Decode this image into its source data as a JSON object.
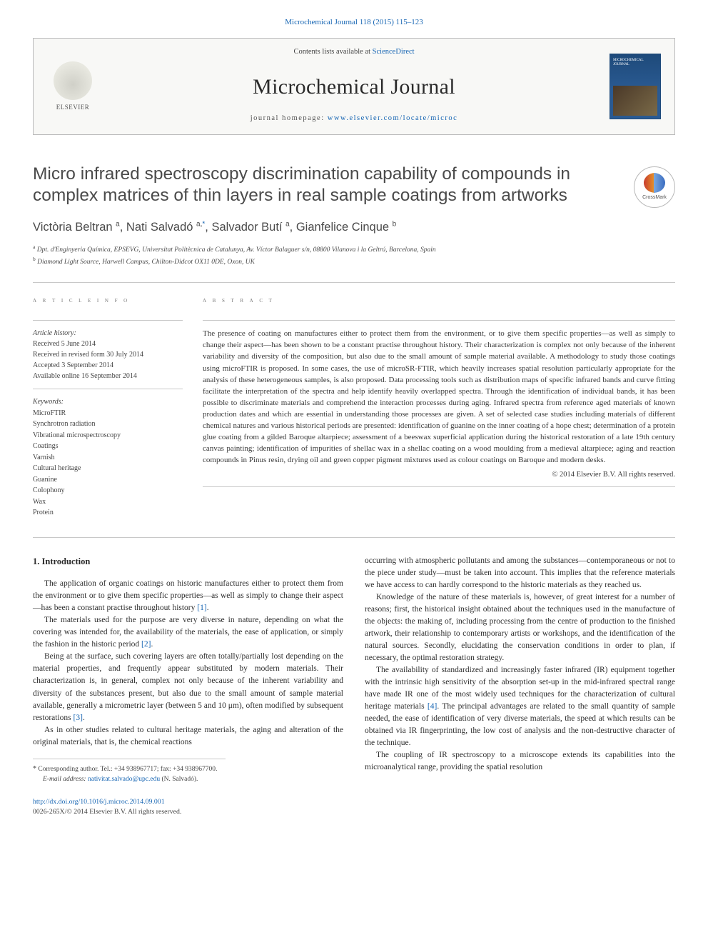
{
  "citation": {
    "text": "Microchemical Journal 118 (2015) 115–123",
    "journal": "Microchemical Journal",
    "volume": "118",
    "year": "2015",
    "pages": "115–123"
  },
  "header": {
    "contents_prefix": "Contents lists available at ",
    "contents_link": "ScienceDirect",
    "journal_name": "Microchemical Journal",
    "homepage_prefix": "journal homepage: ",
    "homepage_url": "www.elsevier.com/locate/microc",
    "elsevier_label": "ELSEVIER",
    "cover_label": "MICROCHEMICAL JOURNAL"
  },
  "crossmark": {
    "label": "CrossMark"
  },
  "article": {
    "title": "Micro infrared spectroscopy discrimination capability of compounds in complex matrices of thin layers in real sample coatings from artworks",
    "authors_html": "Victòria Beltran <span class='sup'>a</span>, Nati Salvadó <span class='sup'>a,</span><span class='sup ast'>*</span>, Salvador Butí <span class='sup'>a</span>, Gianfelice Cinque <span class='sup'>b</span>",
    "affiliations": [
      {
        "sup": "a",
        "text": "Dpt. d'Enginyeria Química, EPSEVG, Universitat Politècnica de Catalunya, Av. Víctor Balaguer s/n, 08800 Vilanova i la Geltrú, Barcelona, Spain"
      },
      {
        "sup": "b",
        "text": "Diamond Light Source, Harwell Campus, Chilton-Didcot OX11 0DE, Oxon, UK"
      }
    ]
  },
  "meta": {
    "info_head": "A R T I C L E    I N F O",
    "abs_head": "A B S T R A C T",
    "history_label": "Article history:",
    "history": [
      "Received 5 June 2014",
      "Received in revised form 30 July 2014",
      "Accepted 3 September 2014",
      "Available online 16 September 2014"
    ],
    "keywords_label": "Keywords:",
    "keywords": [
      "MicroFTIR",
      "Synchrotron radiation",
      "Vibrational microspectroscopy",
      "Coatings",
      "Varnish",
      "Cultural heritage",
      "Guanine",
      "Colophony",
      "Wax",
      "Protein"
    ]
  },
  "abstract": {
    "text": "The presence of coating on manufactures either to protect them from the environment, or to give them specific properties—as well as simply to change their aspect—has been shown to be a constant practise throughout history. Their characterization is complex not only because of the inherent variability and diversity of the composition, but also due to the small amount of sample material available. A methodology to study those coatings using microFTIR is proposed. In some cases, the use of microSR-FTIR, which heavily increases spatial resolution particularly appropriate for the analysis of these heterogeneous samples, is also proposed. Data processing tools such as distribution maps of specific infrared bands and curve fitting facilitate the interpretation of the spectra and help identify heavily overlapped spectra. Through the identification of individual bands, it has been possible to discriminate materials and comprehend the interaction processes during aging. Infrared spectra from reference aged materials of known production dates and which are essential in understanding those processes are given. A set of selected case studies including materials of different chemical natures and various historical periods are presented: identification of guanine on the inner coating of a hope chest; determination of a protein glue coating from a gilded Baroque altarpiece; assessment of a beeswax superficial application during the historical restoration of a late 19th century canvas painting; identification of impurities of shellac wax in a shellac coating on a wood moulding from a medieval altarpiece; aging and reaction compounds in Pinus resin, drying oil and green copper pigment mixtures used as colour coatings on Baroque and modern desks.",
    "copyright": "© 2014 Elsevier B.V. All rights reserved."
  },
  "body": {
    "intro_heading": "1. Introduction",
    "left_paras": [
      "The application of organic coatings on historic manufactures either to protect them from the environment or to give them specific properties—as well as simply to change their aspect—has been a constant practise throughout history [1].",
      "The materials used for the purpose are very diverse in nature, depending on what the covering was intended for, the availability of the materials, the ease of application, or simply the fashion in the historic period [2].",
      "Being at the surface, such covering layers are often totally/partially lost depending on the material properties, and frequently appear substituted by modern materials. Their characterization is, in general, complex not only because of the inherent variability and diversity of the substances present, but also due to the small amount of sample material available, generally a micrometric layer (between 5 and 10 μm), often modified by subsequent restorations [3].",
      "As in other studies related to cultural heritage materials, the aging and alteration of the original materials, that is, the chemical reactions"
    ],
    "right_paras": [
      "occurring with atmospheric pollutants and among the substances—contemporaneous or not to the piece under study—must be taken into account. This implies that the reference materials we have access to can hardly correspond to the historic materials as they reached us.",
      "Knowledge of the nature of these materials is, however, of great interest for a number of reasons; first, the historical insight obtained about the techniques used in the manufacture of the objects: the making of, including processing from the centre of production to the finished artwork, their relationship to contemporary artists or workshops, and the identification of the natural sources. Secondly, elucidating the conservation conditions in order to plan, if necessary, the optimal restoration strategy.",
      "The availability of standardized and increasingly faster infrared (IR) equipment together with the intrinsic high sensitivity of the absorption set-up in the mid-infrared spectral range have made IR one of the most widely used techniques for the characterization of cultural heritage materials [4]. The principal advantages are related to the small quantity of sample needed, the ease of identification of very diverse materials, the speed at which results can be obtained via IR fingerprinting, the low cost of analysis and the non-destructive character of the technique.",
      "The coupling of IR spectroscopy to a microscope extends its capabilities into the microanalytical range, providing the spatial resolution"
    ],
    "refs": {
      "r1": "[1]",
      "r2": "[2]",
      "r3": "[3]",
      "r4": "[4]"
    }
  },
  "footnote": {
    "corr_label": "Corresponding author. Tel.: +34 938967717; fax: +34 938967700.",
    "email_label": "E-mail address:",
    "email": "nativitat.salvado@upc.edu",
    "email_suffix": "(N. Salvadó)."
  },
  "bottom": {
    "doi": "http://dx.doi.org/10.1016/j.microc.2014.09.001",
    "issn_line": "0026-265X/© 2014 Elsevier B.V. All rights reserved."
  },
  "colors": {
    "link": "#1665b3",
    "text": "#323232",
    "muted": "#777777",
    "rule": "#c8c8c8",
    "cover": "#1e4a7a"
  }
}
